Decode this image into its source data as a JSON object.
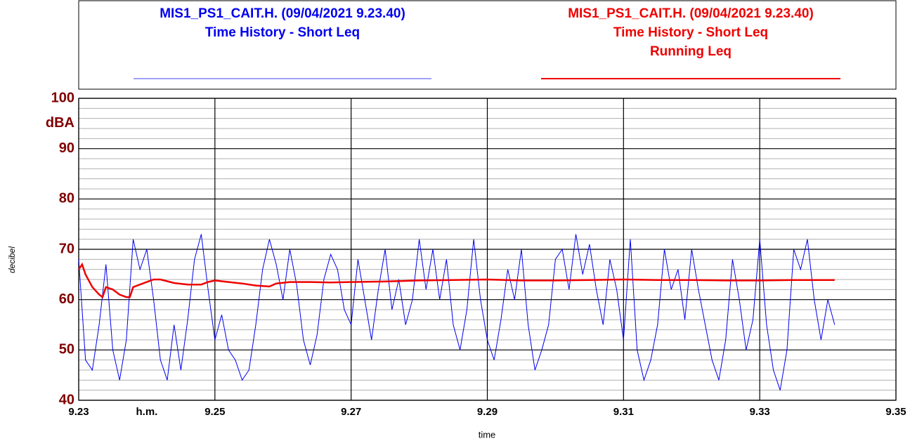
{
  "chart_data": {
    "type": "line",
    "y_label": "decibel",
    "y_unit": "dBA",
    "x_label": "time",
    "x_unit": "h.m.",
    "xlim": [
      9.23,
      9.35
    ],
    "xticks": [
      9.23,
      9.25,
      9.27,
      9.29,
      9.31,
      9.33,
      9.35
    ],
    "ylim": [
      40,
      100
    ],
    "yticks": [
      40,
      50,
      60,
      70,
      80,
      90,
      100
    ],
    "yminor": [
      42,
      44,
      46,
      48,
      52,
      54,
      56,
      58,
      62,
      64,
      66,
      68,
      72,
      74,
      76,
      78,
      82,
      84,
      86,
      88,
      92,
      94,
      96,
      98
    ],
    "grid": true,
    "series": [
      {
        "legend_lines": [
          "MIS1_PS1_CAIT.H. (09/04/2021 9.23.40)",
          "Time History - Short Leq"
        ],
        "color": "#0000ee",
        "width": 1,
        "x": [
          9.23,
          9.231,
          9.232,
          9.233,
          9.234,
          9.235,
          9.236,
          9.237,
          9.238,
          9.239,
          9.24,
          9.241,
          9.242,
          9.243,
          9.244,
          9.245,
          9.246,
          9.247,
          9.248,
          9.249,
          9.25,
          9.251,
          9.252,
          9.253,
          9.254,
          9.255,
          9.256,
          9.257,
          9.258,
          9.259,
          9.26,
          9.261,
          9.262,
          9.263,
          9.264,
          9.265,
          9.266,
          9.267,
          9.268,
          9.269,
          9.27,
          9.271,
          9.272,
          9.273,
          9.274,
          9.275,
          9.276,
          9.277,
          9.278,
          9.279,
          9.28,
          9.281,
          9.282,
          9.283,
          9.284,
          9.285,
          9.286,
          9.287,
          9.288,
          9.289,
          9.29,
          9.291,
          9.292,
          9.293,
          9.294,
          9.295,
          9.296,
          9.297,
          9.298,
          9.299,
          9.3,
          9.301,
          9.302,
          9.303,
          9.304,
          9.305,
          9.306,
          9.307,
          9.308,
          9.309,
          9.31,
          9.311,
          9.312,
          9.313,
          9.314,
          9.315,
          9.316,
          9.317,
          9.318,
          9.319,
          9.32,
          9.321,
          9.322,
          9.323,
          9.324,
          9.325,
          9.326,
          9.327,
          9.328,
          9.329,
          9.33,
          9.331,
          9.332,
          9.333,
          9.334,
          9.335,
          9.336,
          9.337,
          9.338,
          9.339,
          9.34,
          9.341
        ],
        "values": [
          68,
          48,
          46,
          55,
          67,
          50,
          44,
          52,
          72,
          66,
          70,
          60,
          48,
          44,
          55,
          46,
          56,
          68,
          73,
          62,
          52,
          57,
          50,
          48,
          44,
          46,
          55,
          66,
          72,
          67,
          60,
          70,
          63,
          52,
          47,
          53,
          64,
          69,
          66,
          58,
          55,
          68,
          60,
          52,
          62,
          70,
          58,
          64,
          55,
          60,
          72,
          62,
          70,
          60,
          68,
          55,
          50,
          58,
          72,
          60,
          52,
          48,
          56,
          66,
          60,
          70,
          55,
          46,
          50,
          55,
          68,
          70,
          62,
          73,
          65,
          71,
          62,
          55,
          68,
          62,
          52,
          72,
          50,
          44,
          48,
          55,
          70,
          62,
          66,
          56,
          70,
          62,
          55,
          48,
          44,
          52,
          68,
          60,
          50,
          56,
          72,
          55,
          46,
          42,
          50,
          70,
          66,
          72,
          60,
          52,
          60,
          55
        ]
      },
      {
        "legend_lines": [
          "MIS1_PS1_CAIT.H. (09/04/2021 9.23.40)",
          "Time History - Short Leq",
          "Running Leq"
        ],
        "color": "#ee0000",
        "width": 2.5,
        "x": [
          9.23,
          9.2305,
          9.231,
          9.232,
          9.233,
          9.2335,
          9.234,
          9.235,
          9.236,
          9.237,
          9.2375,
          9.238,
          9.239,
          9.24,
          9.241,
          9.242,
          9.244,
          9.246,
          9.248,
          9.249,
          9.25,
          9.252,
          9.254,
          9.256,
          9.258,
          9.259,
          9.261,
          9.264,
          9.267,
          9.27,
          9.275,
          9.28,
          9.285,
          9.29,
          9.295,
          9.3,
          9.305,
          9.31,
          9.315,
          9.32,
          9.325,
          9.33,
          9.335,
          9.341
        ],
        "values": [
          66,
          67,
          65,
          62.5,
          61,
          60.5,
          62.5,
          62,
          61,
          60.5,
          60.5,
          62.5,
          63,
          63.5,
          64,
          64,
          63.3,
          63,
          63,
          63.5,
          63.8,
          63.5,
          63.2,
          62.8,
          62.6,
          63.2,
          63.5,
          63.5,
          63.4,
          63.5,
          63.6,
          63.8,
          63.9,
          64,
          63.8,
          63.8,
          63.9,
          64,
          63.9,
          63.9,
          63.8,
          63.8,
          63.9,
          63.9
        ]
      }
    ]
  }
}
